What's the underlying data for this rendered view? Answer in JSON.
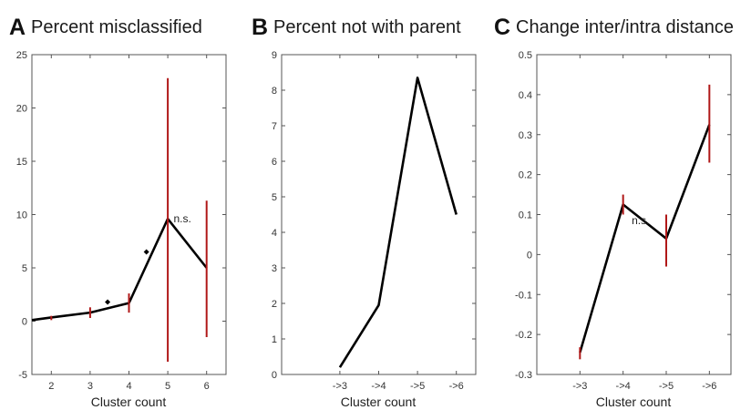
{
  "chart_data": [
    {
      "type": "line",
      "panel_letter": "A",
      "title": "Percent misclassified",
      "xlabel": "Cluster count",
      "ylabel": "",
      "x": [
        1.5,
        2,
        3,
        4,
        5,
        6
      ],
      "x_ticks": [
        2,
        3,
        4,
        5,
        6
      ],
      "x_tick_labels": [
        "2",
        "3",
        "4",
        "5",
        "6"
      ],
      "xlim": [
        1.5,
        6.5
      ],
      "ylim": [
        -5,
        25
      ],
      "y_ticks": [
        -5,
        0,
        5,
        10,
        15,
        20,
        25
      ],
      "y_tick_labels": [
        "-5",
        "0",
        "5",
        "10",
        "15",
        "20",
        "25"
      ],
      "series": [
        {
          "values": [
            0.1,
            0.35,
            0.8,
            1.7,
            9.6,
            5.0
          ]
        }
      ],
      "error_bars": [
        {
          "x": 2,
          "low": 0.1,
          "high": 0.5
        },
        {
          "x": 3,
          "low": 0.3,
          "high": 1.3
        },
        {
          "x": 4,
          "low": 0.8,
          "high": 2.6
        },
        {
          "x": 5,
          "low": -3.8,
          "high": 22.8
        },
        {
          "x": 6,
          "low": -1.5,
          "high": 11.3
        }
      ],
      "markers": [
        {
          "x": 3.45,
          "y": 1.8
        },
        {
          "x": 4.45,
          "y": 6.5
        }
      ],
      "annotations": [
        {
          "text": "n.s.",
          "x": 5.15,
          "y": 9.6
        }
      ],
      "grid": false,
      "colors": {
        "line": "#000000",
        "error_bar": "#b01818"
      }
    },
    {
      "type": "line",
      "panel_letter": "B",
      "title": "Percent not with parent",
      "xlabel": "Cluster count",
      "ylabel": "",
      "x": [
        3,
        4,
        5,
        6
      ],
      "x_ticks": [
        3,
        4,
        5,
        6
      ],
      "x_tick_labels": [
        "->3",
        "->4",
        "->5",
        "->6"
      ],
      "xlim": [
        1.5,
        6.5
      ],
      "ylim": [
        0,
        9
      ],
      "y_ticks": [
        0,
        1,
        2,
        3,
        4,
        5,
        6,
        7,
        8,
        9
      ],
      "y_tick_labels": [
        "0",
        "1",
        "2",
        "3",
        "4",
        "5",
        "6",
        "7",
        "8",
        "9"
      ],
      "series": [
        {
          "values": [
            0.2,
            1.95,
            8.35,
            4.5
          ]
        }
      ],
      "error_bars": [],
      "markers": [],
      "annotations": [],
      "grid": false,
      "colors": {
        "line": "#000000"
      }
    },
    {
      "type": "line",
      "panel_letter": "C",
      "title": "Change inter/intra distance",
      "xlabel": "Cluster count",
      "ylabel": "",
      "x": [
        3,
        4,
        5,
        6
      ],
      "x_ticks": [
        3,
        4,
        5,
        6
      ],
      "x_tick_labels": [
        "->3",
        "->4",
        "->5",
        "->6"
      ],
      "xlim": [
        2.0,
        6.5
      ],
      "ylim": [
        -0.3,
        0.5
      ],
      "y_ticks": [
        -0.3,
        -0.2,
        -0.1,
        0,
        0.1,
        0.2,
        0.3,
        0.4,
        0.5
      ],
      "y_tick_labels": [
        "-0.3",
        "-0.2",
        "-0.1",
        "0",
        "0.1",
        "0.2",
        "0.3",
        "0.4",
        "0.5"
      ],
      "series": [
        {
          "values": [
            -0.245,
            0.125,
            0.04,
            0.325
          ]
        }
      ],
      "error_bars": [
        {
          "x": 3,
          "low": -0.262,
          "high": -0.232
        },
        {
          "x": 4,
          "low": 0.1,
          "high": 0.15
        },
        {
          "x": 5,
          "low": -0.03,
          "high": 0.1
        },
        {
          "x": 6,
          "low": 0.23,
          "high": 0.425
        }
      ],
      "markers": [],
      "annotations": [
        {
          "text": "n.s.",
          "x": 4.2,
          "y": 0.085
        }
      ],
      "grid": false,
      "colors": {
        "line": "#000000",
        "error_bar": "#b01818"
      }
    }
  ]
}
